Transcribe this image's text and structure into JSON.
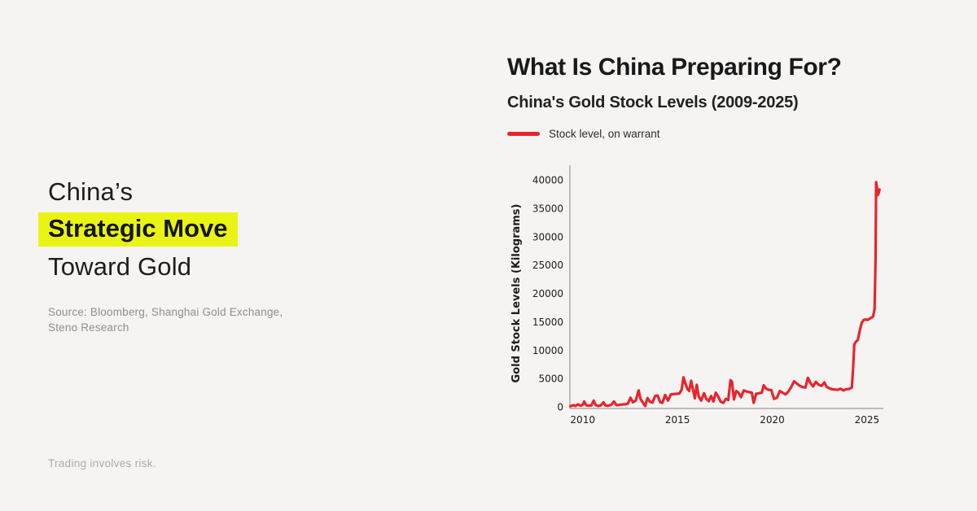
{
  "colors": {
    "background": "#f5f4f2",
    "highlight_yellow": "#eaf414",
    "line_red": "#e7252d",
    "axis_gray": "#9a9a9a",
    "text_dark": "#1d1d1d",
    "text_muted": "#8e8e8e"
  },
  "left_panel": {
    "title_line1": "China’s",
    "title_line2": "Strategic Move",
    "title_line3": "Toward Gold",
    "source_line1": "Source: Bloomberg, Shanghai Gold Exchange,",
    "source_line2": "Steno Research",
    "disclaimer": "Trading involves risk."
  },
  "right_panel": {
    "title": "What Is China Preparing For?",
    "subtitle": "China's Gold Stock Levels (2009-2025)",
    "legend": {
      "label": "Stock level, on warrant",
      "color": "#e7252d"
    }
  },
  "chart_data": {
    "type": "line",
    "title": "China's Gold Stock Levels (2009-2025)",
    "xlabel": "",
    "ylabel": "Gold Stock Levels (Kilograms)",
    "x_ticks": [
      2010,
      2015,
      2020,
      2025
    ],
    "y_ticks": [
      0,
      5000,
      10000,
      15000,
      20000,
      25000,
      30000,
      35000,
      40000
    ],
    "xlim": [
      2009.3,
      2025.9
    ],
    "ylim": [
      0,
      40000
    ],
    "grid": false,
    "legend_position": "top-left",
    "series": [
      {
        "name": "Stock level, on warrant",
        "color": "#e7252d",
        "points": [
          [
            2009.35,
            100
          ],
          [
            2009.5,
            300
          ],
          [
            2009.62,
            150
          ],
          [
            2009.75,
            450
          ],
          [
            2009.88,
            200
          ],
          [
            2010.0,
            350
          ],
          [
            2010.08,
            950
          ],
          [
            2010.18,
            300
          ],
          [
            2010.32,
            200
          ],
          [
            2010.45,
            250
          ],
          [
            2010.58,
            1100
          ],
          [
            2010.68,
            350
          ],
          [
            2010.82,
            150
          ],
          [
            2010.95,
            250
          ],
          [
            2011.1,
            800
          ],
          [
            2011.2,
            250
          ],
          [
            2011.35,
            200
          ],
          [
            2011.5,
            350
          ],
          [
            2011.65,
            950
          ],
          [
            2011.78,
            300
          ],
          [
            2011.92,
            350
          ],
          [
            2012.05,
            400
          ],
          [
            2012.2,
            450
          ],
          [
            2012.38,
            550
          ],
          [
            2012.52,
            1600
          ],
          [
            2012.65,
            800
          ],
          [
            2012.8,
            1100
          ],
          [
            2012.95,
            2900
          ],
          [
            2013.05,
            1400
          ],
          [
            2013.18,
            700
          ],
          [
            2013.3,
            150
          ],
          [
            2013.42,
            1550
          ],
          [
            2013.55,
            900
          ],
          [
            2013.68,
            750
          ],
          [
            2013.82,
            1900
          ],
          [
            2013.95,
            2000
          ],
          [
            2014.08,
            850
          ],
          [
            2014.2,
            700
          ],
          [
            2014.35,
            2100
          ],
          [
            2014.5,
            1100
          ],
          [
            2014.65,
            2200
          ],
          [
            2014.8,
            2250
          ],
          [
            2014.95,
            2300
          ],
          [
            2015.1,
            2350
          ],
          [
            2015.22,
            3000
          ],
          [
            2015.32,
            5200
          ],
          [
            2015.42,
            4100
          ],
          [
            2015.52,
            3200
          ],
          [
            2015.62,
            2800
          ],
          [
            2015.72,
            4600
          ],
          [
            2015.82,
            3000
          ],
          [
            2015.92,
            1500
          ],
          [
            2016.02,
            3900
          ],
          [
            2016.12,
            1800
          ],
          [
            2016.25,
            1100
          ],
          [
            2016.4,
            2400
          ],
          [
            2016.52,
            1400
          ],
          [
            2016.65,
            1000
          ],
          [
            2016.78,
            1900
          ],
          [
            2016.9,
            950
          ],
          [
            2017.02,
            2500
          ],
          [
            2017.15,
            1800
          ],
          [
            2017.28,
            900
          ],
          [
            2017.42,
            700
          ],
          [
            2017.55,
            1400
          ],
          [
            2017.68,
            1200
          ],
          [
            2017.8,
            4700
          ],
          [
            2017.88,
            4400
          ],
          [
            2017.98,
            1300
          ],
          [
            2018.1,
            2800
          ],
          [
            2018.22,
            2500
          ],
          [
            2018.35,
            1700
          ],
          [
            2018.5,
            2900
          ],
          [
            2018.65,
            2700
          ],
          [
            2018.8,
            2600
          ],
          [
            2018.92,
            2500
          ],
          [
            2019.02,
            700
          ],
          [
            2019.15,
            2300
          ],
          [
            2019.3,
            2400
          ],
          [
            2019.45,
            2500
          ],
          [
            2019.55,
            3800
          ],
          [
            2019.68,
            3200
          ],
          [
            2019.82,
            3000
          ],
          [
            2019.95,
            2950
          ],
          [
            2020.1,
            1400
          ],
          [
            2020.25,
            1600
          ],
          [
            2020.4,
            2800
          ],
          [
            2020.55,
            2500
          ],
          [
            2020.7,
            2200
          ],
          [
            2020.85,
            2700
          ],
          [
            2021.0,
            3500
          ],
          [
            2021.15,
            4500
          ],
          [
            2021.3,
            4100
          ],
          [
            2021.45,
            3700
          ],
          [
            2021.6,
            3500
          ],
          [
            2021.75,
            3400
          ],
          [
            2021.88,
            5100
          ],
          [
            2022.0,
            4300
          ],
          [
            2022.15,
            3600
          ],
          [
            2022.3,
            4400
          ],
          [
            2022.45,
            3900
          ],
          [
            2022.6,
            3700
          ],
          [
            2022.75,
            4300
          ],
          [
            2022.88,
            3500
          ],
          [
            2023.0,
            3300
          ],
          [
            2023.15,
            3100
          ],
          [
            2023.3,
            3050
          ],
          [
            2023.45,
            3000
          ],
          [
            2023.6,
            3200
          ],
          [
            2023.75,
            2900
          ],
          [
            2023.9,
            3100
          ],
          [
            2024.05,
            3150
          ],
          [
            2024.2,
            3400
          ],
          [
            2024.27,
            7000
          ],
          [
            2024.33,
            11000
          ],
          [
            2024.42,
            11500
          ],
          [
            2024.52,
            11800
          ],
          [
            2024.62,
            13500
          ],
          [
            2024.72,
            14800
          ],
          [
            2024.82,
            15300
          ],
          [
            2024.92,
            15400
          ],
          [
            2025.02,
            15300
          ],
          [
            2025.12,
            15500
          ],
          [
            2025.22,
            15700
          ],
          [
            2025.32,
            15900
          ],
          [
            2025.4,
            17200
          ],
          [
            2025.45,
            26000
          ],
          [
            2025.48,
            39600
          ],
          [
            2025.52,
            38800
          ],
          [
            2025.56,
            37300
          ],
          [
            2025.61,
            37600
          ],
          [
            2025.66,
            38300
          ]
        ]
      }
    ]
  }
}
